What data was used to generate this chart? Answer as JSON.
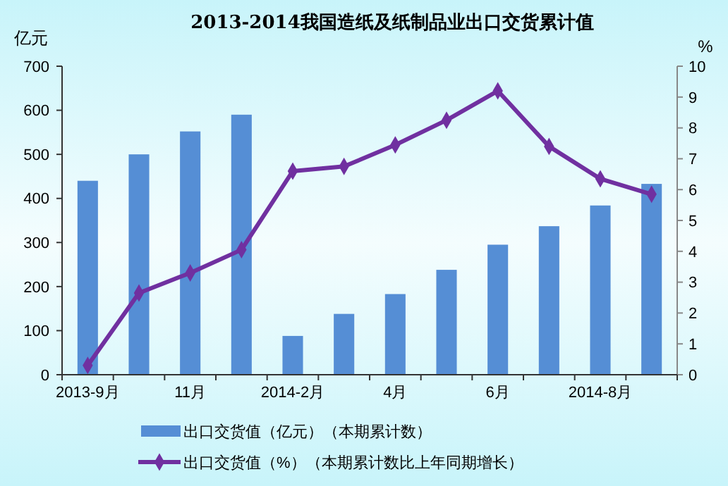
{
  "chart_data": {
    "type": "bar",
    "title": "2013-2014我国造纸及纸制品业出口交货累计值",
    "categories": [
      "2013-9月",
      null,
      "11月",
      null,
      "2014-2月",
      null,
      "4月",
      null,
      "6月",
      null,
      "2014-8月",
      null
    ],
    "series": [
      {
        "name": "出口交货值（亿元）（本期累计数）",
        "color": "#558ed5",
        "values": [
          440,
          500,
          552,
          590,
          88,
          138,
          183,
          238,
          295,
          337,
          384,
          433
        ]
      },
      {
        "name": "出口交货值（%）（本期累计数比上年同期增长）",
        "type": "line",
        "axis": "y2",
        "color": "#7030a0",
        "marker": "diamond",
        "values": [
          0.3,
          2.65,
          3.3,
          4.05,
          6.6,
          6.75,
          7.45,
          8.25,
          9.2,
          7.4,
          6.35,
          5.85
        ]
      }
    ],
    "ylabel": "亿元",
    "y2label": "%",
    "ylim": [
      0,
      700
    ],
    "yticks": [
      0,
      100,
      200,
      300,
      400,
      500,
      600,
      700
    ],
    "y2lim": [
      0,
      10
    ],
    "y2ticks": [
      0,
      1,
      2,
      3,
      4,
      5,
      6,
      7,
      8,
      9,
      10
    ],
    "legend": "bottom",
    "grid": false
  }
}
